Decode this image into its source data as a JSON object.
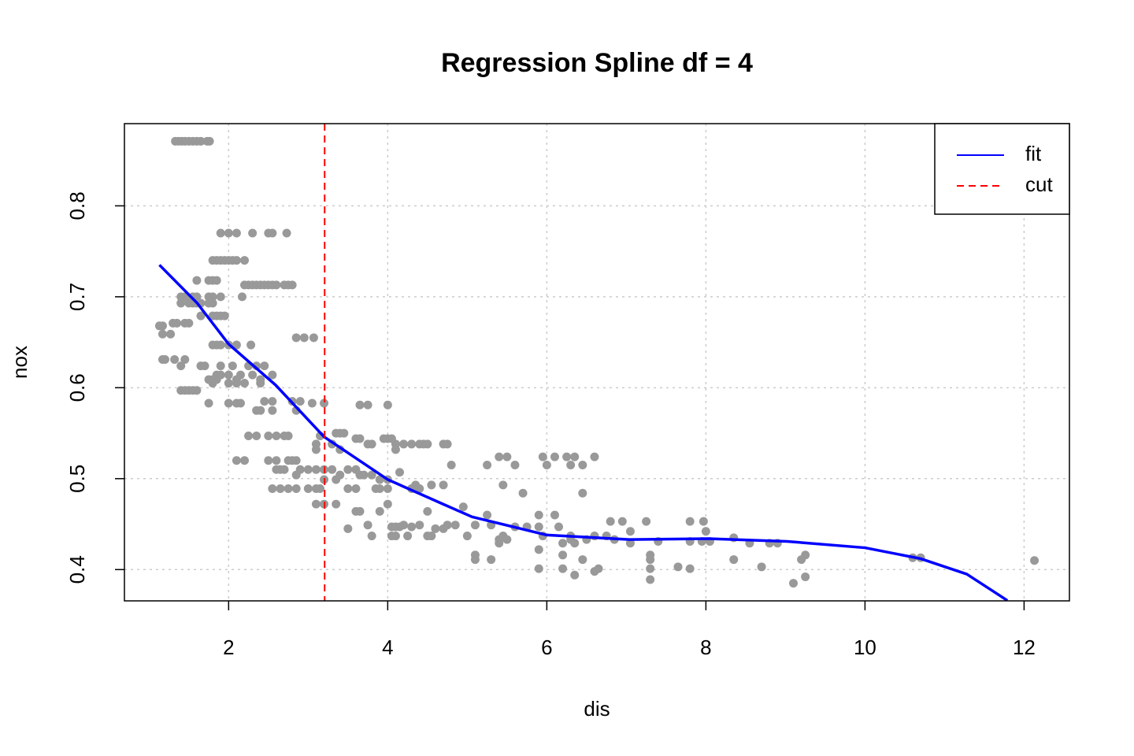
{
  "chart_data": {
    "type": "scatter",
    "title": "Regression Spline df = 4",
    "xlabel": "dis",
    "ylabel": "nox",
    "xlim": [
      0.69,
      12.57
    ],
    "ylim": [
      0.3656,
      0.8904
    ],
    "xticks": [
      2,
      4,
      6,
      8,
      10,
      12
    ],
    "yticks": [
      0.4,
      0.5,
      0.6,
      0.7,
      0.8
    ],
    "grid": true,
    "legend_position": "topright",
    "points": {
      "color": "#999999",
      "x": [
        1.33,
        1.37,
        1.41,
        1.45,
        1.5,
        1.55,
        1.6,
        1.65,
        1.73,
        1.76,
        1.9,
        2.0,
        2.1,
        2.3,
        2.5,
        2.55,
        2.73,
        1.8,
        1.85,
        1.9,
        1.95,
        2.0,
        2.05,
        2.1,
        2.2,
        1.6,
        1.75,
        1.8,
        1.85,
        2.2,
        2.25,
        2.3,
        2.35,
        2.4,
        2.45,
        2.5,
        2.55,
        2.6,
        2.7,
        2.75,
        2.8,
        1.4,
        1.45,
        1.55,
        1.6,
        1.75,
        1.8,
        1.9,
        2.17,
        1.4,
        1.5,
        1.55,
        1.6,
        1.65,
        1.75,
        1.8,
        1.65,
        1.8,
        1.85,
        1.9,
        1.95,
        1.3,
        1.35,
        1.45,
        1.5,
        1.13,
        1.17,
        1.17,
        1.27,
        2.85,
        2.95,
        3.07,
        1.8,
        1.85,
        1.9,
        2.0,
        2.1,
        2.28,
        1.17,
        1.2,
        1.32,
        1.45,
        1.4,
        1.65,
        1.7,
        1.9,
        2.05,
        2.25,
        2.35,
        2.45,
        1.85,
        1.9,
        2.0,
        2.15,
        2.3,
        2.55,
        1.75,
        1.8,
        1.85,
        2.1,
        2.4,
        1.8,
        2.0,
        2.1,
        2.2,
        2.4,
        1.4,
        1.45,
        1.5,
        1.55,
        1.6,
        2.45,
        2.55,
        2.8,
        2.9,
        1.75,
        2.0,
        2.1,
        2.15,
        3.05,
        3.2,
        3.65,
        3.75,
        4.0,
        2.35,
        2.4,
        2.55,
        2.85,
        3.35,
        3.4,
        3.45,
        2.25,
        2.35,
        2.5,
        2.6,
        2.7,
        2.75,
        3.15,
        3.6,
        3.65,
        3.95,
        4.0,
        4.05,
        3.1,
        3.3,
        3.75,
        3.8,
        4.1,
        4.2,
        4.3,
        4.4,
        4.45,
        4.5,
        4.7,
        4.75,
        3.1,
        3.4,
        4.1,
        5.4,
        5.5,
        5.95,
        6.1,
        6.25,
        6.35,
        6.6,
        2.1,
        2.2,
        2.5,
        2.6,
        2.75,
        2.8,
        2.85,
        4.8,
        5.25,
        5.6,
        6.0,
        6.3,
        6.45,
        2.6,
        2.65,
        2.7,
        2.9,
        3.0,
        3.1,
        3.2,
        3.3,
        3.5,
        3.6,
        4.15,
        2.85,
        3.4,
        3.65,
        3.7,
        3.8,
        3.2,
        3.35,
        3.9,
        4.0,
        4.35,
        4.55,
        4.7,
        5.45,
        2.55,
        2.65,
        2.75,
        2.85,
        3.0,
        3.1,
        3.15,
        3.5,
        3.6,
        3.85,
        3.9,
        4.0,
        4.3,
        4.4,
        5.7,
        6.45,
        3.1,
        3.2,
        3.35,
        4.0,
        4.95,
        3.6,
        3.65,
        3.9,
        4.5,
        5.25,
        5.9,
        6.1,
        3.75,
        4.2,
        4.4,
        4.75,
        4.85,
        5.1,
        5.3,
        4.05,
        4.1,
        4.15,
        4.3,
        5.6,
        5.75,
        5.9,
        6.15,
        3.5,
        4.6,
        4.7,
        3.8,
        4.05,
        4.1,
        4.25,
        4.5,
        4.55,
        5.0,
        5.45,
        5.95,
        6.3,
        6.6,
        6.75,
        5.4,
        5.5,
        6.3,
        6.5,
        6.85,
        5.4,
        6.2,
        6.35,
        7.05,
        6.8,
        6.95,
        7.25,
        7.8,
        7.97,
        7.05,
        8.0,
        7.4,
        7.8,
        7.95,
        8.05,
        8.35,
        8.55,
        8.8,
        8.9,
        5.9,
        5.1,
        6.2,
        7.3,
        9.25,
        5.1,
        5.3,
        6.45,
        7.3,
        8.35,
        9.2,
        10.6,
        10.7,
        12.13,
        5.9,
        6.2,
        6.65,
        7.3,
        7.8,
        7.65,
        8.7,
        6.35,
        6.6,
        7.3,
        9.25,
        9.1
      ],
      "y": [
        0.871,
        0.871,
        0.871,
        0.871,
        0.871,
        0.871,
        0.871,
        0.871,
        0.871,
        0.871,
        0.77,
        0.77,
        0.77,
        0.77,
        0.77,
        0.77,
        0.77,
        0.74,
        0.74,
        0.74,
        0.74,
        0.74,
        0.74,
        0.74,
        0.74,
        0.718,
        0.718,
        0.718,
        0.718,
        0.713,
        0.713,
        0.713,
        0.713,
        0.713,
        0.713,
        0.713,
        0.713,
        0.713,
        0.713,
        0.713,
        0.713,
        0.7,
        0.7,
        0.7,
        0.7,
        0.7,
        0.7,
        0.7,
        0.7,
        0.693,
        0.693,
        0.693,
        0.693,
        0.693,
        0.693,
        0.693,
        0.679,
        0.679,
        0.679,
        0.679,
        0.679,
        0.671,
        0.671,
        0.671,
        0.671,
        0.668,
        0.668,
        0.659,
        0.659,
        0.655,
        0.655,
        0.655,
        0.647,
        0.647,
        0.647,
        0.647,
        0.647,
        0.647,
        0.631,
        0.631,
        0.631,
        0.631,
        0.624,
        0.624,
        0.624,
        0.624,
        0.624,
        0.624,
        0.624,
        0.624,
        0.614,
        0.614,
        0.614,
        0.614,
        0.614,
        0.614,
        0.609,
        0.609,
        0.609,
        0.609,
        0.609,
        0.605,
        0.605,
        0.605,
        0.605,
        0.605,
        0.597,
        0.597,
        0.597,
        0.597,
        0.597,
        0.585,
        0.585,
        0.585,
        0.585,
        0.583,
        0.583,
        0.583,
        0.583,
        0.583,
        0.583,
        0.581,
        0.581,
        0.581,
        0.575,
        0.575,
        0.575,
        0.575,
        0.55,
        0.55,
        0.55,
        0.547,
        0.547,
        0.547,
        0.547,
        0.547,
        0.547,
        0.547,
        0.544,
        0.544,
        0.544,
        0.544,
        0.544,
        0.538,
        0.538,
        0.538,
        0.538,
        0.538,
        0.538,
        0.538,
        0.538,
        0.538,
        0.538,
        0.538,
        0.538,
        0.532,
        0.532,
        0.532,
        0.524,
        0.524,
        0.524,
        0.524,
        0.524,
        0.524,
        0.524,
        0.52,
        0.52,
        0.52,
        0.52,
        0.52,
        0.52,
        0.52,
        0.515,
        0.515,
        0.515,
        0.515,
        0.515,
        0.515,
        0.51,
        0.51,
        0.51,
        0.51,
        0.51,
        0.51,
        0.51,
        0.51,
        0.51,
        0.51,
        0.507,
        0.504,
        0.504,
        0.504,
        0.504,
        0.504,
        0.499,
        0.499,
        0.499,
        0.499,
        0.493,
        0.493,
        0.493,
        0.493,
        0.489,
        0.489,
        0.489,
        0.489,
        0.489,
        0.489,
        0.489,
        0.489,
        0.489,
        0.489,
        0.489,
        0.489,
        0.489,
        0.489,
        0.484,
        0.484,
        0.472,
        0.472,
        0.472,
        0.472,
        0.469,
        0.464,
        0.464,
        0.464,
        0.464,
        0.46,
        0.46,
        0.46,
        0.449,
        0.449,
        0.449,
        0.449,
        0.449,
        0.449,
        0.449,
        0.447,
        0.447,
        0.447,
        0.447,
        0.447,
        0.447,
        0.447,
        0.447,
        0.445,
        0.445,
        0.445,
        0.437,
        0.437,
        0.437,
        0.437,
        0.437,
        0.437,
        0.437,
        0.437,
        0.437,
        0.437,
        0.437,
        0.437,
        0.433,
        0.433,
        0.433,
        0.433,
        0.433,
        0.429,
        0.429,
        0.429,
        0.429,
        0.453,
        0.453,
        0.453,
        0.453,
        0.453,
        0.442,
        0.442,
        0.431,
        0.431,
        0.431,
        0.431,
        0.435,
        0.429,
        0.429,
        0.429,
        0.422,
        0.416,
        0.416,
        0.416,
        0.416,
        0.411,
        0.411,
        0.411,
        0.411,
        0.411,
        0.411,
        0.413,
        0.413,
        0.41,
        0.401,
        0.401,
        0.401,
        0.401,
        0.401,
        0.403,
        0.403,
        0.394,
        0.398,
        0.389,
        0.392,
        0.385
      ]
    },
    "fit": {
      "name": "fit",
      "color": "#0000ff",
      "x": [
        1.13,
        1.605,
        2.0,
        2.59,
        3.2,
        4.0,
        4.67,
        5.06,
        6.0,
        7.04,
        8.03,
        9.02,
        10.0,
        10.7,
        11.28,
        11.79
      ],
      "y": [
        0.735,
        0.693,
        0.648,
        0.603,
        0.546,
        0.499,
        0.473,
        0.458,
        0.438,
        0.433,
        0.434,
        0.431,
        0.424,
        0.412,
        0.395,
        0.366
      ]
    },
    "cut": {
      "name": "cut",
      "color": "#ff0000",
      "x": 3.207
    }
  }
}
